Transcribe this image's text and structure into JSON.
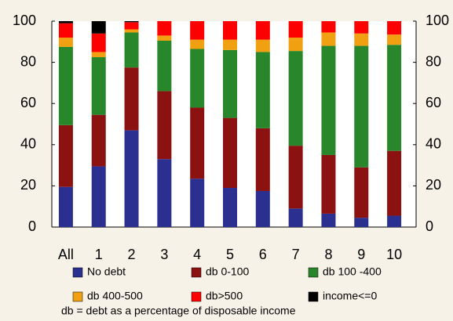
{
  "chart_data": {
    "type": "stacked_bar",
    "categories": [
      "All",
      "1",
      "2",
      "3",
      "4",
      "5",
      "6",
      "7",
      "8",
      "9",
      "10"
    ],
    "series": [
      {
        "name": "No debt",
        "color": "#2b2f8f",
        "values": [
          19.5,
          29.5,
          47,
          33,
          23.5,
          19,
          17.5,
          9,
          6.5,
          4.5,
          5.5
        ]
      },
      {
        "name": "db 0-100",
        "color": "#8c1111",
        "values": [
          30,
          25,
          30.5,
          33,
          34.5,
          34,
          30.5,
          30.5,
          28.5,
          24.5,
          31.5
        ]
      },
      {
        "name": "db 100 -400",
        "color": "#27872a",
        "values": [
          38,
          28,
          17,
          24.5,
          28.5,
          33,
          37,
          46,
          53,
          59,
          51.5
        ]
      },
      {
        "name": "db 400-500",
        "color": "#f0a010",
        "values": [
          4.5,
          2.5,
          1.5,
          2.5,
          4.5,
          5,
          6,
          6.5,
          6.5,
          6,
          5
        ]
      },
      {
        "name": "db>500",
        "color": "#ff0000",
        "values": [
          7,
          9,
          3.5,
          7,
          9,
          9,
          9,
          8,
          5.5,
          6,
          6.5
        ]
      },
      {
        "name": "income<=0",
        "color": "#000000",
        "values": [
          1,
          6,
          0.5,
          0,
          0,
          0,
          0,
          0,
          0,
          0,
          0
        ]
      }
    ],
    "ylim": [
      0,
      100
    ],
    "yticks": [
      0,
      20,
      40,
      60,
      80,
      100
    ],
    "y2lim": [
      0,
      100
    ],
    "y2ticks": [
      0,
      20,
      40,
      60,
      80,
      100
    ],
    "note": "db = debt as a percentage of disposable income"
  }
}
